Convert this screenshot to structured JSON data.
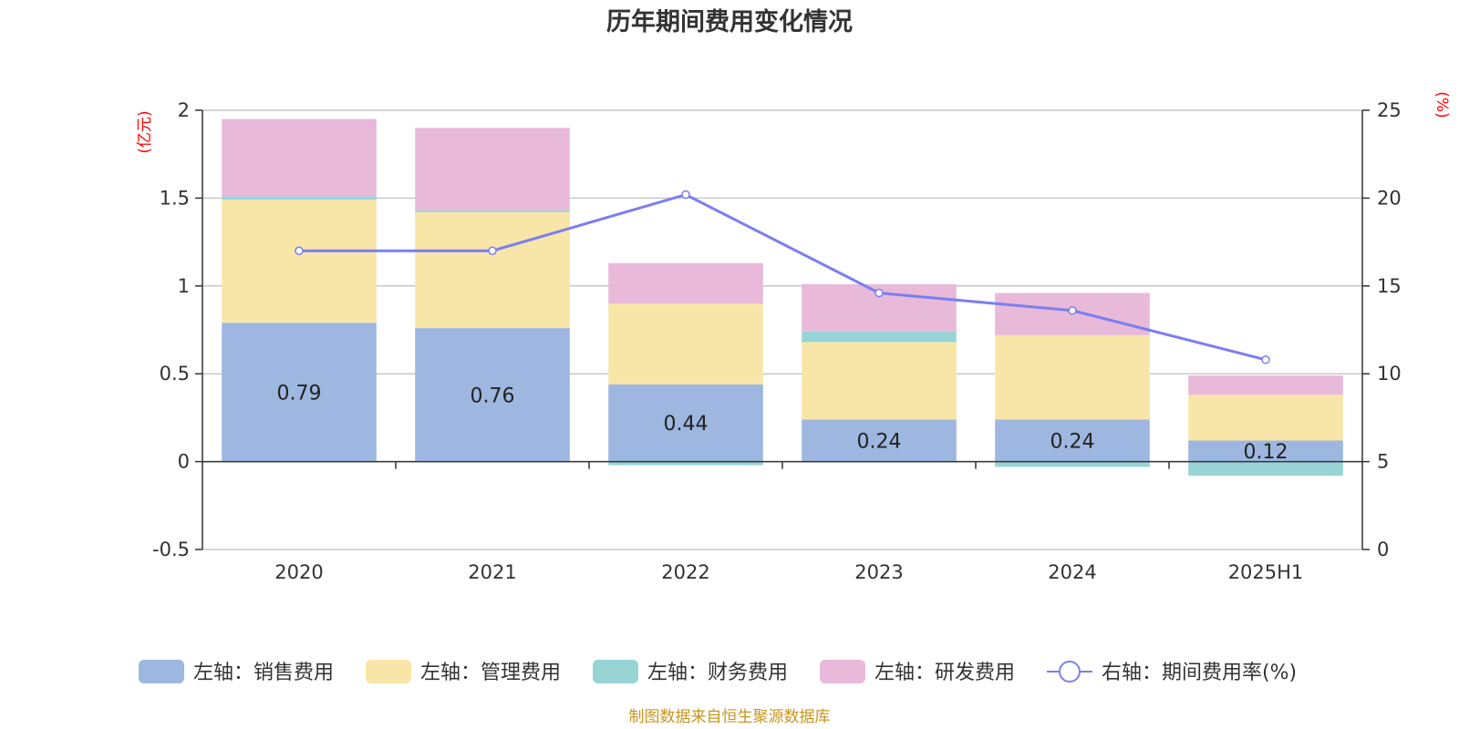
{
  "chart_data": {
    "type": "bar",
    "stacked": true,
    "title": "历年期间费用变化情况",
    "categories": [
      "2020",
      "2021",
      "2022",
      "2023",
      "2024",
      "2025H1"
    ],
    "left_axis": {
      "unit": "(亿元)",
      "ylim": [
        -0.5,
        2
      ],
      "ticks": [
        -0.5,
        0,
        0.5,
        1,
        1.5,
        2
      ],
      "tick_labels": [
        "-0.5",
        "0",
        "0.5",
        "1",
        "1.5",
        "2"
      ]
    },
    "right_axis": {
      "unit": "(%)",
      "ylim": [
        0,
        25
      ],
      "ticks": [
        0,
        5,
        10,
        15,
        20,
        25
      ],
      "tick_labels": [
        "0",
        "5",
        "10",
        "15",
        "20",
        "25"
      ]
    },
    "series": [
      {
        "name": "左轴：销售费用",
        "axis": "left",
        "color": "#9db7e0",
        "values": [
          0.79,
          0.76,
          0.44,
          0.24,
          0.24,
          0.12
        ],
        "labels": [
          "0.79",
          "0.76",
          "0.44",
          "0.24",
          "0.24",
          "0.12"
        ]
      },
      {
        "name": "左轴：管理费用",
        "axis": "left",
        "color": "#f8e6a8",
        "values": [
          0.7,
          0.66,
          0.46,
          0.44,
          0.48,
          0.26
        ]
      },
      {
        "name": "左轴：财务费用",
        "axis": "left",
        "color": "#98d4d6",
        "values": [
          0.02,
          0.01,
          -0.02,
          0.06,
          -0.03,
          -0.08
        ]
      },
      {
        "name": "左轴：研发费用",
        "axis": "left",
        "color": "#e8b9d9",
        "values": [
          0.44,
          0.47,
          0.23,
          0.27,
          0.24,
          0.11
        ]
      },
      {
        "name": "右轴：期间费用率(%)",
        "axis": "right",
        "type": "line",
        "color": "#7b7ef0",
        "values": [
          17.0,
          17.0,
          20.2,
          14.6,
          13.6,
          10.8
        ]
      }
    ],
    "grid": true,
    "legend_position": "bottom"
  },
  "source_note": "制图数据来自恒生聚源数据库"
}
